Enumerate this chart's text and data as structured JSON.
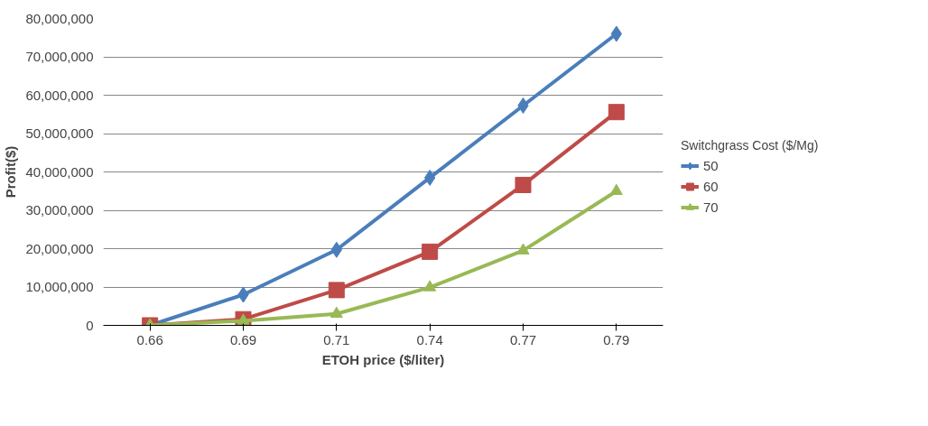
{
  "chart_data": {
    "type": "line",
    "xlabel": "ETOH price ($/liter)",
    "ylabel": "Profit($)",
    "legend_title": "Switchgrass Cost ($/Mg)",
    "categories": [
      "0.66",
      "0.69",
      "0.71",
      "0.74",
      "0.77",
      "0.79"
    ],
    "series": [
      {
        "name": "50",
        "color": "#4a7ebb",
        "marker": "diamond",
        "values": [
          0,
          8000000,
          19700000,
          38500000,
          57300000,
          76000000
        ]
      },
      {
        "name": "60",
        "color": "#be4b48",
        "marker": "square",
        "values": [
          0,
          1600000,
          9200000,
          19200000,
          36600000,
          55600000
        ]
      },
      {
        "name": "70",
        "color": "#98b954",
        "marker": "triangle",
        "values": [
          0,
          1200000,
          3000000,
          9900000,
          19500000,
          35000000
        ]
      }
    ],
    "ylim": [
      0,
      80000000
    ],
    "yticks": [
      0,
      {
        "value": 10000000,
        "label": "10,000,000"
      },
      {
        "value": 20000000,
        "label": "20,000,000"
      },
      {
        "value": 30000000,
        "label": "30,000,000"
      },
      {
        "value": 40000000,
        "label": "40,000,000"
      },
      {
        "value": 50000000,
        "label": "50,000,000"
      },
      {
        "value": 60000000,
        "label": "60,000,000"
      },
      {
        "value": 70000000,
        "label": "70,000,000"
      },
      {
        "value": 80000000,
        "label": "80,000,000"
      }
    ],
    "grid": "y",
    "legend": "right",
    "line_style": "solid"
  }
}
